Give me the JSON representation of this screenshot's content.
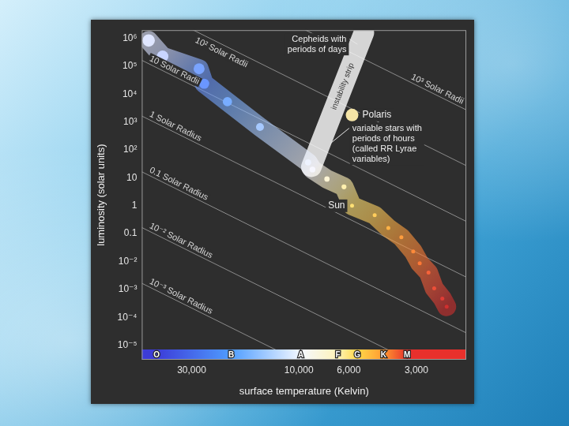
{
  "chart_data": {
    "type": "scatter",
    "x_label": "surface temperature (Kelvin)",
    "y_label": "luminosity (solar units)",
    "log": true,
    "grid": false,
    "xlim": [
      50000,
      1800
    ],
    "xticks": [
      {
        "value": 30000,
        "label": "30,000"
      },
      {
        "value": 10000,
        "label": "10,000"
      },
      {
        "value": 6000,
        "label": "6,000"
      },
      {
        "value": 3000,
        "label": "3,000"
      }
    ],
    "ylim": [
      3e-06,
      2000000
    ],
    "yticks": [
      {
        "value": 1000000,
        "label": "10⁶"
      },
      {
        "value": 100000,
        "label": "10⁵"
      },
      {
        "value": 10000,
        "label": "10⁴"
      },
      {
        "value": 1000,
        "label": "10³"
      },
      {
        "value": 100,
        "label": "10²"
      },
      10,
      1,
      0.1,
      {
        "value": 0.01,
        "label": "10⁻²"
      },
      {
        "value": 0.001,
        "label": "10⁻³"
      },
      {
        "value": 0.0001,
        "label": "10⁻⁴"
      },
      {
        "value": 1e-05,
        "label": "10⁻⁵"
      }
    ],
    "main_sequence": {
      "marker": "circle",
      "x": [
        46600,
        40400,
        27800,
        26400,
        20800,
        14900,
        9100,
        8700,
        7500,
        6300,
        5800,
        4600,
        4000,
        3500,
        3100,
        2900,
        2650,
        2500,
        2300,
        2200
      ],
      "y": [
        850000,
        230000,
        82000,
        24000,
        5400,
        670,
        36,
        20,
        9.1,
        4.8,
        1,
        0.46,
        0.16,
        0.074,
        0.023,
        0.0087,
        0.004,
        0.0011,
        0.00047,
        0.00024
      ],
      "colors": [
        "#dfe6ff",
        "#c8d4ff",
        "#7aa4ff",
        "#6a96ff",
        "#78adff",
        "#a6c9ff",
        "#eef3ff",
        "#f7f7ff",
        "#fff5d6",
        "#fff0ae",
        "#ffe074",
        "#ffcd5c",
        "#ffb347",
        "#ff9d3e",
        "#ff8a3a",
        "#ff7836",
        "#f6633a",
        "#ee4f38",
        "#e03c35",
        "#d0302f"
      ]
    },
    "polaris": {
      "label": "Polaris",
      "x": 5800,
      "y": 1800,
      "color": "#f4e4a6"
    },
    "instability_strip": {
      "label": "instability strip",
      "x": [
        8800,
        5140
      ],
      "y": [
        25,
        1600000
      ],
      "color": "#ffffff"
    },
    "radius_lines": {
      "color": "#8c8c8c",
      "line_style": "solid",
      "lines": [
        {
          "label": "10³ Solar Radii",
          "x": [
            50000,
            1800
          ],
          "y": [
            1660000000,
            2750
          ]
        },
        {
          "label": "10² Solar Radii",
          "x": [
            50000,
            1800
          ],
          "y": [
            16600000,
            27.5
          ]
        },
        {
          "label": "10 Solar Radii",
          "x": [
            50000,
            1800
          ],
          "y": [
            166000,
            0.275
          ]
        },
        {
          "label": "1 Solar Radius",
          "x": [
            50000,
            1800
          ],
          "y": [
            1660,
            0.00275
          ]
        },
        {
          "label": "0.1 Solar Radius",
          "x": [
            50000,
            1800
          ],
          "y": [
            16.6,
            2.75e-05
          ]
        },
        {
          "label": "10⁻² Solar Radius",
          "x": [
            50000,
            1800
          ],
          "y": [
            0.166,
            2.75e-07
          ]
        },
        {
          "label": "10⁻³ Solar Radius",
          "x": [
            50000,
            1800
          ],
          "y": [
            0.00166,
            2.75e-09
          ]
        }
      ]
    },
    "spectral_classes": {
      "labels": [
        "O",
        "B",
        "A",
        "F",
        "G",
        "K",
        "M"
      ],
      "x": [
        43000,
        20000,
        9800,
        6700,
        5500,
        4200,
        3300
      ]
    },
    "annotations": [
      {
        "text": [
          "Cepheids with",
          "periods of days"
        ],
        "x": 5140,
        "y": 620000
      },
      {
        "text": [
          "variable stars with",
          "periods of hours",
          "(called RR Lyrae",
          "variables)"
        ],
        "x": 8000,
        "y": 170
      },
      {
        "text": [
          "Sun"
        ],
        "x": 5800,
        "y": 1
      }
    ]
  }
}
